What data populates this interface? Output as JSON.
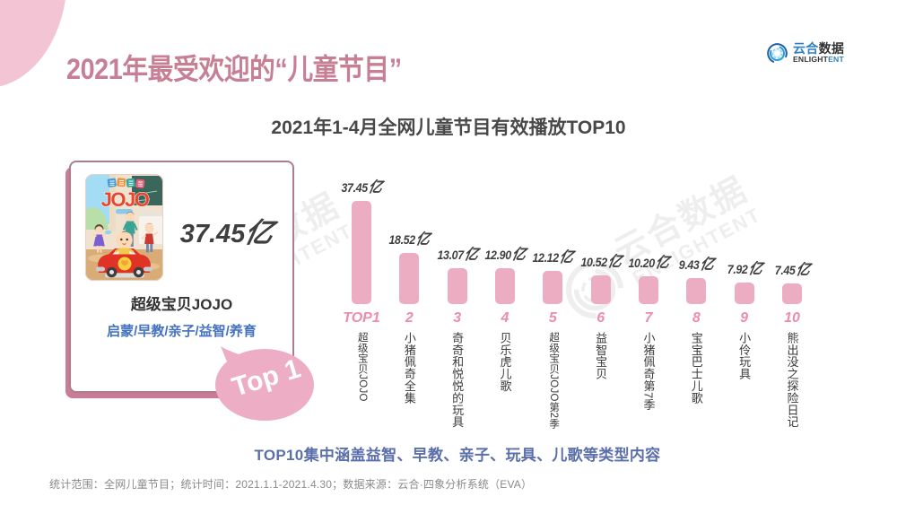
{
  "header": {
    "title": "2021年最受欢迎的“儿童节目”",
    "logo": {
      "cn_blue": "云合",
      "cn_dark": "数据",
      "en_dark": "ENLIGHT",
      "en_blue": "ENT"
    }
  },
  "watermark": {
    "cn": "云合数据",
    "en": "ENLIGHTENT"
  },
  "card": {
    "value_number": "37.45",
    "value_unit": "亿",
    "name": "超级宝贝JOJO",
    "tags": "启蒙/早教/亲子/益智/养育",
    "badge": "Top 1",
    "poster_title": "JOJO"
  },
  "chart_data": {
    "type": "bar",
    "title": "2021年1-4月全网儿童节目有效播放TOP10",
    "unit": "亿",
    "categories": [
      "超级宝贝JOJO",
      "小猪佩奇全集",
      "奇奇和悦悦的玩具",
      "贝乐虎儿歌",
      "超级宝贝JOJO第2季",
      "益智宝贝",
      "小猪佩奇第7季",
      "宝宝巴士儿歌",
      "小伶玩具",
      "熊出没之探险日记"
    ],
    "ranks": [
      "TOP1",
      "2",
      "3",
      "4",
      "5",
      "6",
      "7",
      "8",
      "9",
      "10"
    ],
    "values": [
      37.45,
      18.52,
      13.07,
      12.9,
      12.12,
      10.52,
      10.2,
      9.43,
      7.92,
      7.45
    ],
    "ylim": [
      0,
      40
    ],
    "grid": false,
    "legend": false,
    "bar_color": "#ecacc2",
    "xlabel": "",
    "ylabel": ""
  },
  "summary": {
    "text": "TOP10集中涵盖益智、早教、亲子、玩具、儿歌等类型内容"
  },
  "footnote": {
    "text": "统计范围：全网儿童节目；统计时间：2021.1.1-2021.4.30；数据来源：云合·四象分析系统（EVA）"
  },
  "colors": {
    "title_pink": "#c67f95",
    "bar_pink": "#ecacc2",
    "rank_pink": "#ed8cab",
    "tag_blue": "#4573c0",
    "summary_blue": "#5b6faa",
    "footnote_gray": "#8a8a8a",
    "logo_blue": "#2d7fc3"
  }
}
